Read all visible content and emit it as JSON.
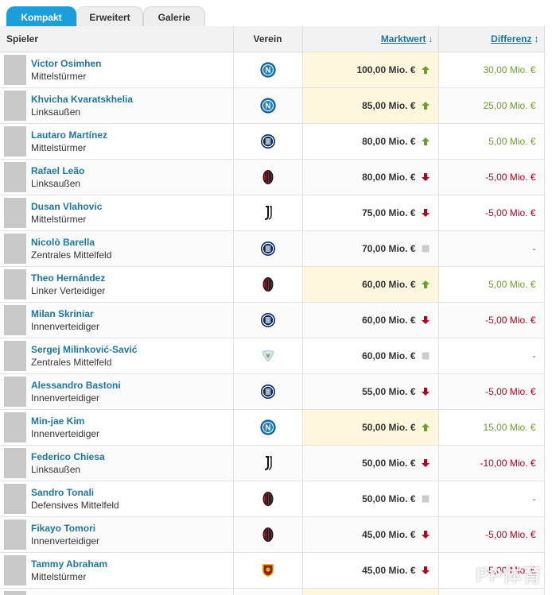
{
  "tabs": [
    {
      "label": "Kompakt",
      "active": true
    },
    {
      "label": "Erweitert",
      "active": false
    },
    {
      "label": "Galerie",
      "active": false
    }
  ],
  "columns": {
    "player": "Spieler",
    "club": "Verein",
    "market_value": "Marktwert",
    "market_value_sort": "↓",
    "difference": "Differenz",
    "difference_sort": "↕"
  },
  "rows": [
    {
      "name": "Victor Osimhen",
      "position": "Mittelstürmer",
      "club": "napoli-crest-icon",
      "value": "100,00 Mio. €",
      "trend": "up",
      "diff": "30,00 Mio. €",
      "highlight": true
    },
    {
      "name": "Khvicha Kvaratskhelia",
      "position": "Linksaußen",
      "club": "napoli-crest-icon",
      "value": "85,00 Mio. €",
      "trend": "up",
      "diff": "25,00 Mio. €",
      "highlight": true
    },
    {
      "name": "Lautaro Martínez",
      "position": "Mittelstürmer",
      "club": "inter-crest-icon",
      "value": "80,00 Mio. €",
      "trend": "up",
      "diff": "5,00 Mio. €",
      "highlight": false
    },
    {
      "name": "Rafael Leão",
      "position": "Linksaußen",
      "club": "milan-crest-icon",
      "value": "80,00 Mio. €",
      "trend": "down",
      "diff": "-5,00 Mio. €",
      "highlight": false
    },
    {
      "name": "Dusan Vlahovic",
      "position": "Mittelstürmer",
      "club": "juventus-crest-icon",
      "value": "75,00 Mio. €",
      "trend": "down",
      "diff": "-5,00 Mio. €",
      "highlight": false
    },
    {
      "name": "Nicolò Barella",
      "position": "Zentrales Mittelfeld",
      "club": "inter-crest-icon",
      "value": "70,00 Mio. €",
      "trend": "same",
      "diff": "-",
      "highlight": false
    },
    {
      "name": "Theo Hernández",
      "position": "Linker Verteidiger",
      "club": "milan-crest-icon",
      "value": "60,00 Mio. €",
      "trend": "up",
      "diff": "5,00 Mio. €",
      "highlight": true
    },
    {
      "name": "Milan Skriniar",
      "position": "Innenverteidiger",
      "club": "inter-crest-icon",
      "value": "60,00 Mio. €",
      "trend": "down",
      "diff": "-5,00 Mio. €",
      "highlight": false
    },
    {
      "name": "Sergej Milinković-Savić",
      "position": "Zentrales Mittelfeld",
      "club": "lazio-crest-icon",
      "value": "60,00 Mio. €",
      "trend": "same",
      "diff": "-",
      "highlight": false
    },
    {
      "name": "Alessandro Bastoni",
      "position": "Innenverteidiger",
      "club": "inter-crest-icon",
      "value": "55,00 Mio. €",
      "trend": "down",
      "diff": "-5,00 Mio. €",
      "highlight": false
    },
    {
      "name": "Min-jae Kim",
      "position": "Innenverteidiger",
      "club": "napoli-crest-icon",
      "value": "50,00 Mio. €",
      "trend": "up",
      "diff": "15,00 Mio. €",
      "highlight": true
    },
    {
      "name": "Federico Chiesa",
      "position": "Linksaußen",
      "club": "juventus-crest-icon",
      "value": "50,00 Mio. €",
      "trend": "down",
      "diff": "-10,00 Mio. €",
      "highlight": false
    },
    {
      "name": "Sandro Tonali",
      "position": "Defensives Mittelfeld",
      "club": "milan-crest-icon",
      "value": "50,00 Mio. €",
      "trend": "same",
      "diff": "-",
      "highlight": false
    },
    {
      "name": "Fikayo Tomori",
      "position": "Innenverteidiger",
      "club": "milan-crest-icon",
      "value": "45,00 Mio. €",
      "trend": "down",
      "diff": "-5,00 Mio. €",
      "highlight": false
    },
    {
      "name": "Tammy Abraham",
      "position": "Mittelstürmer",
      "club": "roma-crest-icon",
      "value": "45,00 Mio. €",
      "trend": "down",
      "diff": "-5,00 Mio. €",
      "highlight": false
    },
    {
      "name": "",
      "position": "",
      "club": "",
      "value": "",
      "trend": "",
      "diff": "",
      "highlight": true
    }
  ],
  "colors": {
    "tab_active": "#1a9fdb",
    "link": "#1d75a3",
    "highlight": "#fdf8dd",
    "up": "#6c9e2d",
    "down": "#b3001b",
    "same": "#cccccc"
  },
  "watermark": "PP体育"
}
